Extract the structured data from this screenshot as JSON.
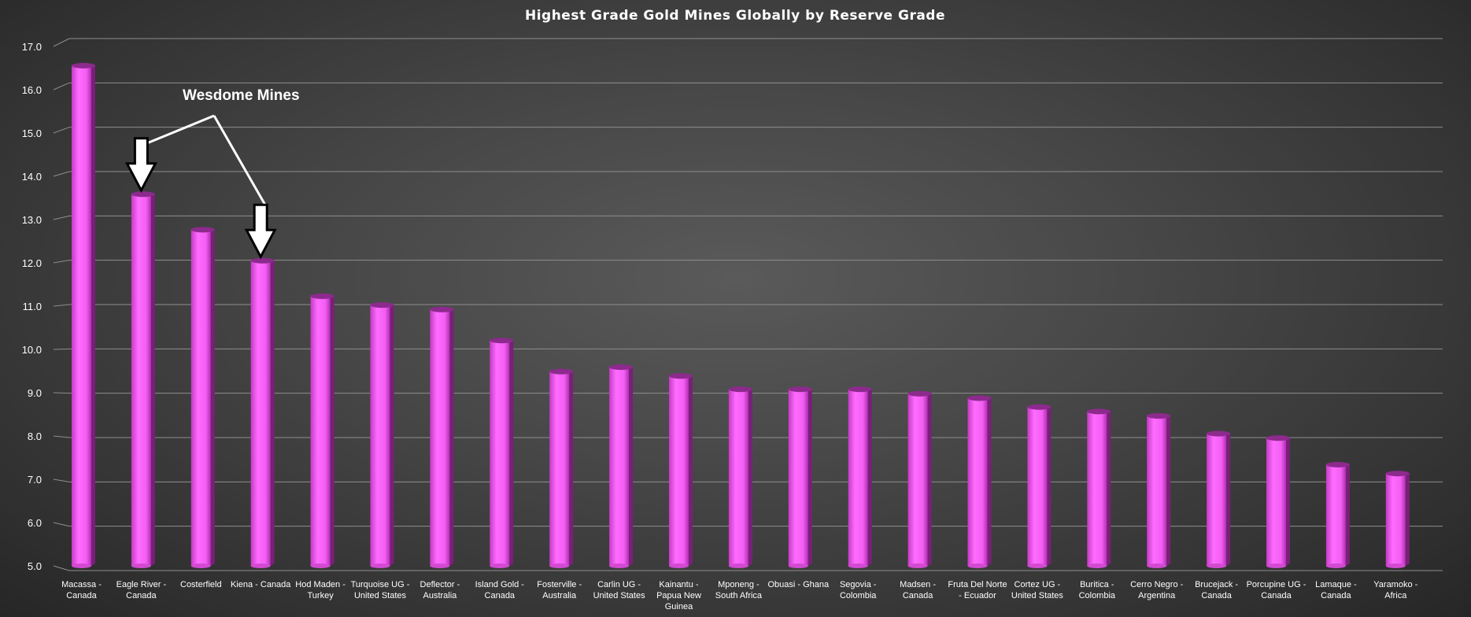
{
  "chart_data": {
    "type": "bar",
    "title": "Highest Grade Gold Mines Globally by Reserve Grade",
    "xlabel": "",
    "ylabel": "",
    "ylim": [
      5.0,
      17.0
    ],
    "yticks": [
      "5.0",
      "6.0",
      "7.0",
      "8.0",
      "9.0",
      "10.0",
      "11.0",
      "12.0",
      "13.0",
      "14.0",
      "15.0",
      "16.0",
      "17.0"
    ],
    "grid": true,
    "bar_color": "#f35ef3",
    "annotation": {
      "text": "Wesdome Mines",
      "targets": [
        "Eagle River - Canada",
        "Kiena - Canada"
      ]
    },
    "categories": [
      [
        "Macassa -",
        "Canada"
      ],
      [
        "Eagle River -",
        "Canada"
      ],
      [
        "Costerfield"
      ],
      [
        "Kiena - Canada"
      ],
      [
        "Hod Maden -",
        "Turkey"
      ],
      [
        "Turquoise UG -",
        "United States"
      ],
      [
        "Deflector -",
        "Australia"
      ],
      [
        "Island Gold -",
        "Canada"
      ],
      [
        "Fosterville -",
        "Australia"
      ],
      [
        "Carlin UG -",
        "United States"
      ],
      [
        "Kainantu -",
        "Papua New",
        "Guinea"
      ],
      [
        "Mponeng -",
        "South Africa"
      ],
      [
        "Obuasi - Ghana"
      ],
      [
        "Segovia -",
        "Colombia"
      ],
      [
        "Madsen -",
        "Canada"
      ],
      [
        "Fruta Del Norte",
        "- Ecuador"
      ],
      [
        "Cortez UG -",
        "United States"
      ],
      [
        "Buritica -",
        "Colombia"
      ],
      [
        "Cerro Negro -",
        "Argentina"
      ],
      [
        "Brucejack -",
        "Canada"
      ],
      [
        "Porcupine UG -",
        "Canada"
      ],
      [
        "Lamaque -",
        "Canada"
      ],
      [
        "Yaramoko -",
        "Africa"
      ]
    ],
    "values": [
      16.3,
      13.4,
      12.6,
      11.9,
      11.1,
      10.9,
      10.8,
      10.1,
      9.4,
      9.5,
      9.3,
      9.0,
      9.0,
      9.0,
      8.9,
      8.8,
      8.6,
      8.5,
      8.4,
      8.0,
      7.9,
      7.3,
      7.1
    ]
  }
}
